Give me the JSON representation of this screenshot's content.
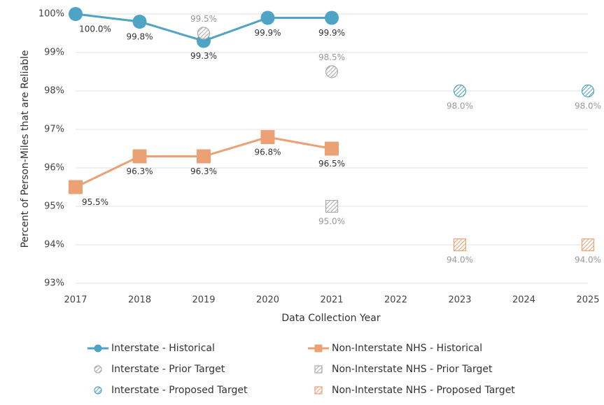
{
  "chart_data": {
    "type": "line",
    "xlabel": "Data Collection Year",
    "ylabel": "Percent of Person-Miles that are Reliable",
    "categories": [
      "2017",
      "2018",
      "2019",
      "2020",
      "2021",
      "2022",
      "2023",
      "2024",
      "2025"
    ],
    "ylim": [
      93,
      100
    ],
    "yticks": [
      {
        "value": 93,
        "label": "93%"
      },
      {
        "value": 94,
        "label": "94%"
      },
      {
        "value": 95,
        "label": "95%"
      },
      {
        "value": 96,
        "label": "96%"
      },
      {
        "value": 97,
        "label": "97%"
      },
      {
        "value": 98,
        "label": "98%"
      },
      {
        "value": 99,
        "label": "99%"
      },
      {
        "value": 100,
        "label": "100%"
      }
    ],
    "grid": true,
    "series": [
      {
        "name": "Interstate - Historical",
        "type": "line",
        "marker": "circle",
        "hatch": false,
        "color": "#4fa3c4",
        "values": [
          100.0,
          99.8,
          99.3,
          99.9,
          99.9,
          null,
          null,
          null,
          null
        ],
        "value_labels": [
          "100.0%",
          "99.8%",
          "99.3%",
          "99.9%",
          "99.9%",
          null,
          null,
          null,
          null
        ]
      },
      {
        "name": "Non-Interstate NHS - Historical",
        "type": "line",
        "marker": "square",
        "hatch": false,
        "color": "#eba174",
        "values": [
          95.5,
          96.3,
          96.3,
          96.8,
          96.5,
          null,
          null,
          null,
          null
        ],
        "value_labels": [
          "95.5%",
          "96.3%",
          "96.3%",
          "96.8%",
          "96.5%",
          null,
          null,
          null,
          null
        ]
      },
      {
        "name": "Interstate - Prior Target",
        "type": "scatter",
        "marker": "circle",
        "hatch": true,
        "color": "#aaaaaa",
        "values": [
          null,
          null,
          99.5,
          null,
          98.5,
          null,
          null,
          null,
          null
        ],
        "value_labels": [
          null,
          null,
          "99.5%",
          null,
          "98.5%",
          null,
          null,
          null,
          null
        ]
      },
      {
        "name": "Non-Interstate NHS - Prior Target",
        "type": "scatter",
        "marker": "square",
        "hatch": true,
        "color": "#aaaaaa",
        "values": [
          null,
          null,
          null,
          null,
          95.0,
          null,
          null,
          null,
          null
        ],
        "value_labels": [
          null,
          null,
          null,
          null,
          "95.0%",
          null,
          null,
          null,
          null
        ]
      },
      {
        "name": "Interstate - Proposed Target",
        "type": "scatter",
        "marker": "circle",
        "hatch": true,
        "color": "#4fa3c4",
        "values": [
          null,
          null,
          null,
          null,
          null,
          null,
          98.0,
          null,
          98.0
        ],
        "value_labels": [
          null,
          null,
          null,
          null,
          null,
          null,
          "98.0%",
          null,
          "98.0%"
        ]
      },
      {
        "name": "Non-Interstate NHS - Proposed Target",
        "type": "scatter",
        "marker": "square",
        "hatch": true,
        "color": "#eba174",
        "values": [
          null,
          null,
          null,
          null,
          null,
          null,
          94.0,
          null,
          94.0
        ],
        "value_labels": [
          null,
          null,
          null,
          null,
          null,
          null,
          "94.0%",
          null,
          "94.0%"
        ]
      }
    ]
  }
}
